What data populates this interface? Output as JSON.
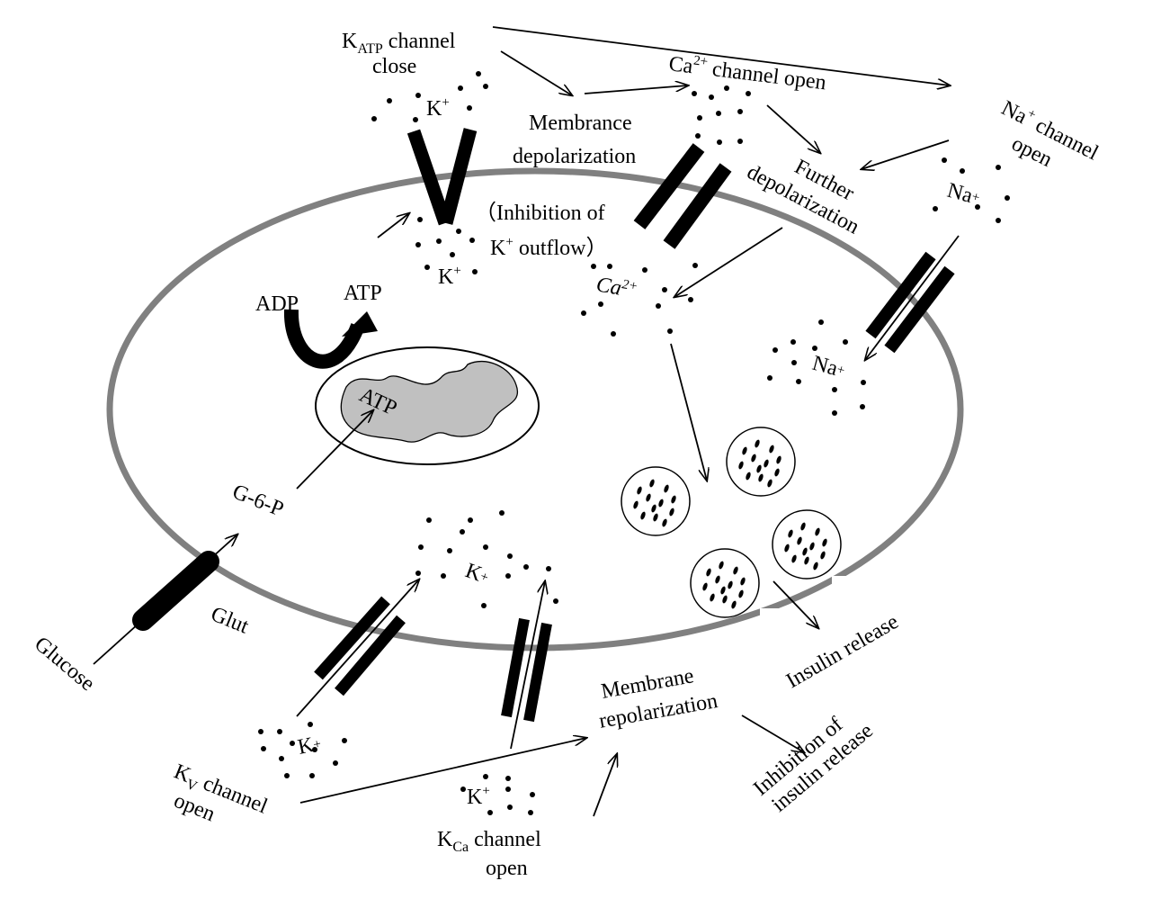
{
  "labels": {
    "katp_main": "K",
    "katp_sub": "ATP",
    "katp_channel": " channel",
    "close": "close",
    "k_plus": "K",
    "plus": "+",
    "membrance": "Membrance",
    "depolarization": "depolarization",
    "ca_main": "Ca",
    "ca_sup": "2+",
    "channel_open": " channel open",
    "na_main": "Na",
    "na_sup": "+",
    "channel": " channel",
    "open": "open",
    "further": "Further",
    "inhibition_of": "（Inhibition  of",
    "outflow": " outflow）",
    "atp": "ATP",
    "adp": "ADP",
    "g6p": "G-6-P",
    "glut": "Glut",
    "glucose": "Glucose",
    "insulin_release": "Insulin release",
    "membrane": "Membrane",
    "repolarization": "repolarization",
    "inhibition_of2": "Inhibition of",
    "insulin_release2": "insulin release",
    "kv_main": "K",
    "kv_sub": "V",
    "kca_sub": "Ca"
  },
  "colors": {
    "membrane": "#808080",
    "mitochondrion": "#c0c0c0",
    "channel": "#000000"
  }
}
